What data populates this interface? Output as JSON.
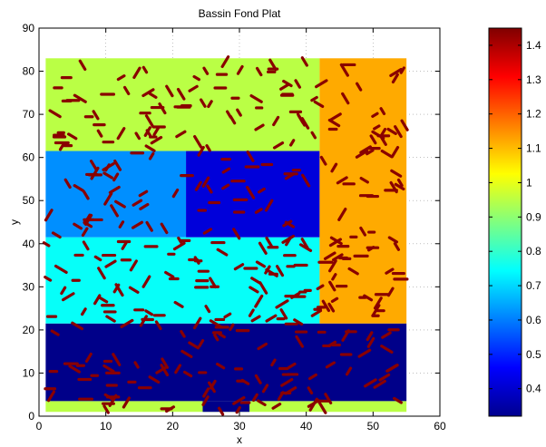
{
  "chart_data": {
    "type": "heatmap",
    "title": "Bassin Fond Plat",
    "xlabel": "x",
    "ylabel": "y",
    "xlim": [
      0,
      60
    ],
    "ylim": [
      0,
      90
    ],
    "xticks": [
      0,
      10,
      20,
      30,
      40,
      50,
      60
    ],
    "yticks": [
      0,
      10,
      20,
      30,
      40,
      50,
      60,
      70,
      80,
      90
    ],
    "grid": true,
    "colorbar": {
      "colormap": "jet",
      "range": [
        0.32,
        1.45
      ],
      "ticks": [
        0.4,
        0.5,
        0.6,
        0.7,
        0.8,
        0.9,
        1,
        1.1,
        1.2,
        1.3,
        1.4
      ],
      "tick_labels": [
        "0.4",
        "0.5",
        "0.6",
        "0.7",
        "0.8",
        "0.9",
        "1",
        "1.1",
        "1.2",
        "1.3",
        "1.4"
      ]
    },
    "regions": [
      {
        "x": [
          1,
          55
        ],
        "y": [
          1,
          3.5
        ],
        "value": 0.95
      },
      {
        "x": [
          1,
          55
        ],
        "y": [
          3.5,
          21.5
        ],
        "value": 0.33
      },
      {
        "x": [
          1,
          42
        ],
        "y": [
          21.5,
          41.5
        ],
        "value": 0.75
      },
      {
        "x": [
          1,
          22
        ],
        "y": [
          41.5,
          61.5
        ],
        "value": 0.62
      },
      {
        "x": [
          22,
          42
        ],
        "y": [
          41.5,
          61.5
        ],
        "value": 0.42
      },
      {
        "x": [
          1,
          42
        ],
        "y": [
          61.5,
          83
        ],
        "value": 0.95
      },
      {
        "x": [
          42,
          55
        ],
        "y": [
          21.5,
          83
        ],
        "value": 1.12
      }
    ],
    "notch": {
      "x": [
        24.5,
        31.5
      ],
      "y": [
        1,
        3.5
      ],
      "value": 0.33
    },
    "inclusions": {
      "value": 1.44,
      "count": 420,
      "x_range": [
        1,
        55
      ],
      "y_range": [
        1,
        83
      ]
    }
  }
}
